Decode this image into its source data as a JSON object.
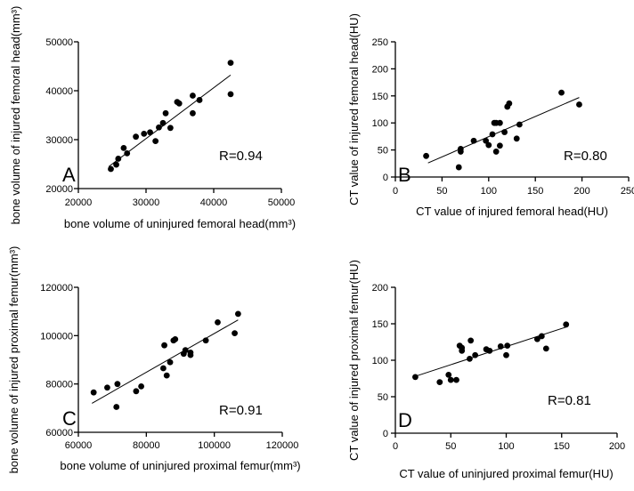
{
  "chart_data": [
    {
      "type": "scatter",
      "panel_label": "A",
      "xlabel": "bone volume of uninjured femoral head(mm³)",
      "ylabel": "bone volume of injured femoral head(mm³)",
      "xlim": [
        20000,
        50000
      ],
      "ylim": [
        20000,
        50000
      ],
      "xticks": [
        20000,
        30000,
        40000,
        50000
      ],
      "yticks": [
        20000,
        30000,
        40000,
        50000
      ],
      "xtick_labels": [
        "20000",
        "30000",
        "40000",
        "50000"
      ],
      "ytick_labels": [
        "20000",
        "30000",
        "40000",
        "50000"
      ],
      "annotation": "R=0.94",
      "fit_line": {
        "x": [
          24500,
          42500
        ],
        "y": [
          24500,
          43200
        ]
      },
      "points": [
        [
          24800,
          24000
        ],
        [
          25600,
          24900
        ],
        [
          25900,
          26100
        ],
        [
          26700,
          28300
        ],
        [
          27200,
          27200
        ],
        [
          28500,
          30600
        ],
        [
          29700,
          31200
        ],
        [
          30600,
          31500
        ],
        [
          31400,
          29700
        ],
        [
          31900,
          32500
        ],
        [
          32500,
          33400
        ],
        [
          32900,
          35400
        ],
        [
          33600,
          32400
        ],
        [
          34600,
          37700
        ],
        [
          34900,
          37400
        ],
        [
          36900,
          35400
        ],
        [
          36900,
          39000
        ],
        [
          37900,
          38100
        ],
        [
          42500,
          45700
        ],
        [
          42500,
          39300
        ]
      ]
    },
    {
      "type": "scatter",
      "panel_label": "B",
      "xlabel": "CT value of injured femoral head(HU)",
      "ylabel": "CT value of injured femoral head(HU)",
      "xlim": [
        0,
        250
      ],
      "ylim": [
        0,
        250
      ],
      "xticks": [
        0,
        50,
        100,
        150,
        200,
        250
      ],
      "yticks": [
        0,
        50,
        100,
        150,
        200,
        250
      ],
      "xtick_labels": [
        "0",
        "50",
        "100",
        "150",
        "200",
        "250"
      ],
      "ytick_labels": [
        "0",
        "50",
        "100",
        "150",
        "200",
        "250"
      ],
      "annotation": "R=0.80",
      "fit_line": {
        "x": [
          35,
          197
        ],
        "y": [
          26,
          147
        ]
      },
      "points": [
        [
          33,
          39
        ],
        [
          68,
          18
        ],
        [
          70,
          47
        ],
        [
          70,
          52
        ],
        [
          84,
          67
        ],
        [
          97,
          67
        ],
        [
          100,
          59
        ],
        [
          104,
          79
        ],
        [
          106,
          100
        ],
        [
          108,
          47
        ],
        [
          108,
          100
        ],
        [
          112,
          100
        ],
        [
          112,
          58
        ],
        [
          117,
          83
        ],
        [
          120,
          130
        ],
        [
          122,
          136
        ],
        [
          130,
          71
        ],
        [
          133,
          97
        ],
        [
          178,
          156
        ],
        [
          197,
          134
        ]
      ]
    },
    {
      "type": "scatter",
      "panel_label": "C",
      "xlabel": "bone volume of uninjured proximal femur(mm³)",
      "ylabel": "bone volume of injured proximal femur(mm³)",
      "xlim": [
        60000,
        120000
      ],
      "ylim": [
        60000,
        120000
      ],
      "xticks": [
        60000,
        80000,
        100000,
        120000
      ],
      "yticks": [
        60000,
        80000,
        100000,
        120000
      ],
      "xtick_labels": [
        "60000",
        "80000",
        "100000",
        "120000"
      ],
      "ytick_labels": [
        "60000",
        "80000",
        "100000",
        "120000"
      ],
      "annotation": "R=0.91",
      "fit_line": {
        "x": [
          64000,
          107000
        ],
        "y": [
          72000,
          106500
        ]
      },
      "points": [
        [
          64500,
          76500
        ],
        [
          68500,
          78500
        ],
        [
          71200,
          70500
        ],
        [
          71500,
          80000
        ],
        [
          77000,
          77000
        ],
        [
          78500,
          79000
        ],
        [
          85000,
          86500
        ],
        [
          85300,
          96000
        ],
        [
          86000,
          83500
        ],
        [
          87000,
          89000
        ],
        [
          88000,
          98000
        ],
        [
          88500,
          98500
        ],
        [
          91000,
          92500
        ],
        [
          91500,
          94000
        ],
        [
          93000,
          93000
        ],
        [
          97500,
          98000
        ],
        [
          101000,
          105500
        ],
        [
          106000,
          101000
        ],
        [
          107000,
          109000
        ],
        [
          93000,
          92000
        ]
      ]
    },
    {
      "type": "scatter",
      "panel_label": "D",
      "xlabel": "CT value of uninjured proximal femur(HU)",
      "ylabel": "CT value of injured proximal femur(HU)",
      "xlim": [
        0,
        200
      ],
      "ylim": [
        0,
        200
      ],
      "xticks": [
        0,
        50,
        100,
        150,
        200
      ],
      "yticks": [
        0,
        50,
        100,
        150,
        200
      ],
      "xtick_labels": [
        "0",
        "50",
        "100",
        "150",
        "200"
      ],
      "ytick_labels": [
        "0",
        "50",
        "100",
        "150",
        "200"
      ],
      "annotation": "R=0.81",
      "fit_line": {
        "x": [
          18,
          155
        ],
        "y": [
          78,
          146
        ]
      },
      "points": [
        [
          18,
          77
        ],
        [
          40,
          70
        ],
        [
          48,
          80
        ],
        [
          50,
          73
        ],
        [
          55,
          73
        ],
        [
          58,
          120
        ],
        [
          60,
          113
        ],
        [
          60,
          117
        ],
        [
          67,
          102
        ],
        [
          68,
          127
        ],
        [
          72,
          107
        ],
        [
          82,
          115
        ],
        [
          85,
          113
        ],
        [
          95,
          119
        ],
        [
          100,
          107
        ],
        [
          101,
          120
        ],
        [
          128,
          129
        ],
        [
          132,
          133
        ],
        [
          136,
          116
        ],
        [
          154,
          149
        ]
      ]
    }
  ]
}
